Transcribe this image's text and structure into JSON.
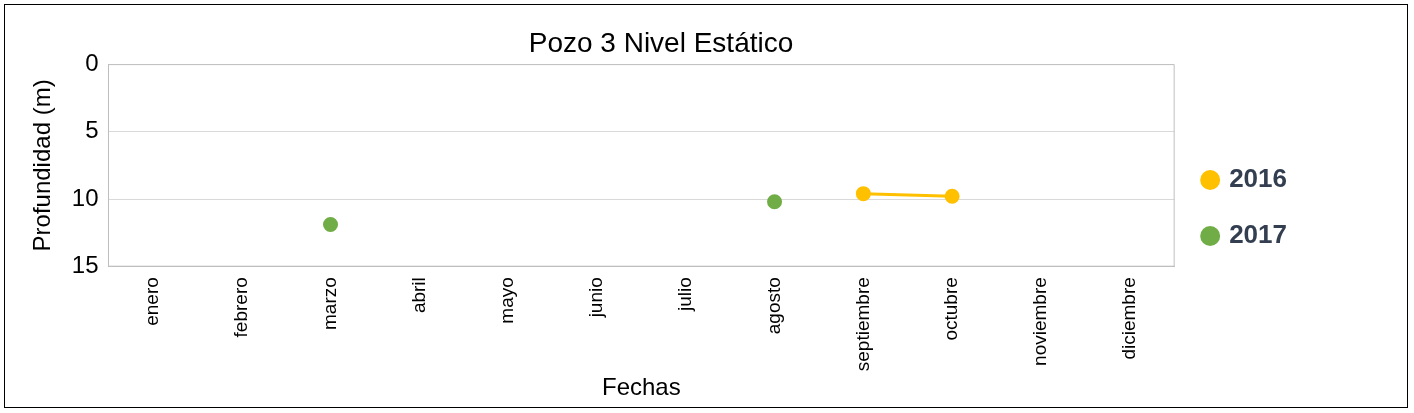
{
  "chart_data": {
    "type": "line",
    "title": "Pozo 3 Nivel Estático",
    "xlabel": "Fechas",
    "ylabel": "Profundidad (m)",
    "categories": [
      "enero",
      "febrero",
      "marzo",
      "abril",
      "mayo",
      "junio",
      "julio",
      "agosto",
      "septiembre",
      "octubre",
      "noviembre",
      "diciembre"
    ],
    "series": [
      {
        "name": "2016",
        "color": "#ffc000",
        "values": [
          null,
          null,
          null,
          null,
          null,
          null,
          null,
          null,
          9.6,
          9.8,
          null,
          null
        ]
      },
      {
        "name": "2017",
        "type": "scatter",
        "color": "#70ad47",
        "values": [
          null,
          null,
          11.9,
          null,
          null,
          null,
          null,
          10.2,
          null,
          null,
          null,
          null
        ]
      }
    ],
    "ylim": [
      15,
      0
    ],
    "yticks": [
      0,
      5,
      10,
      15
    ],
    "grid": "y",
    "legend": "right",
    "marker": "circle",
    "line_style": "solid"
  }
}
